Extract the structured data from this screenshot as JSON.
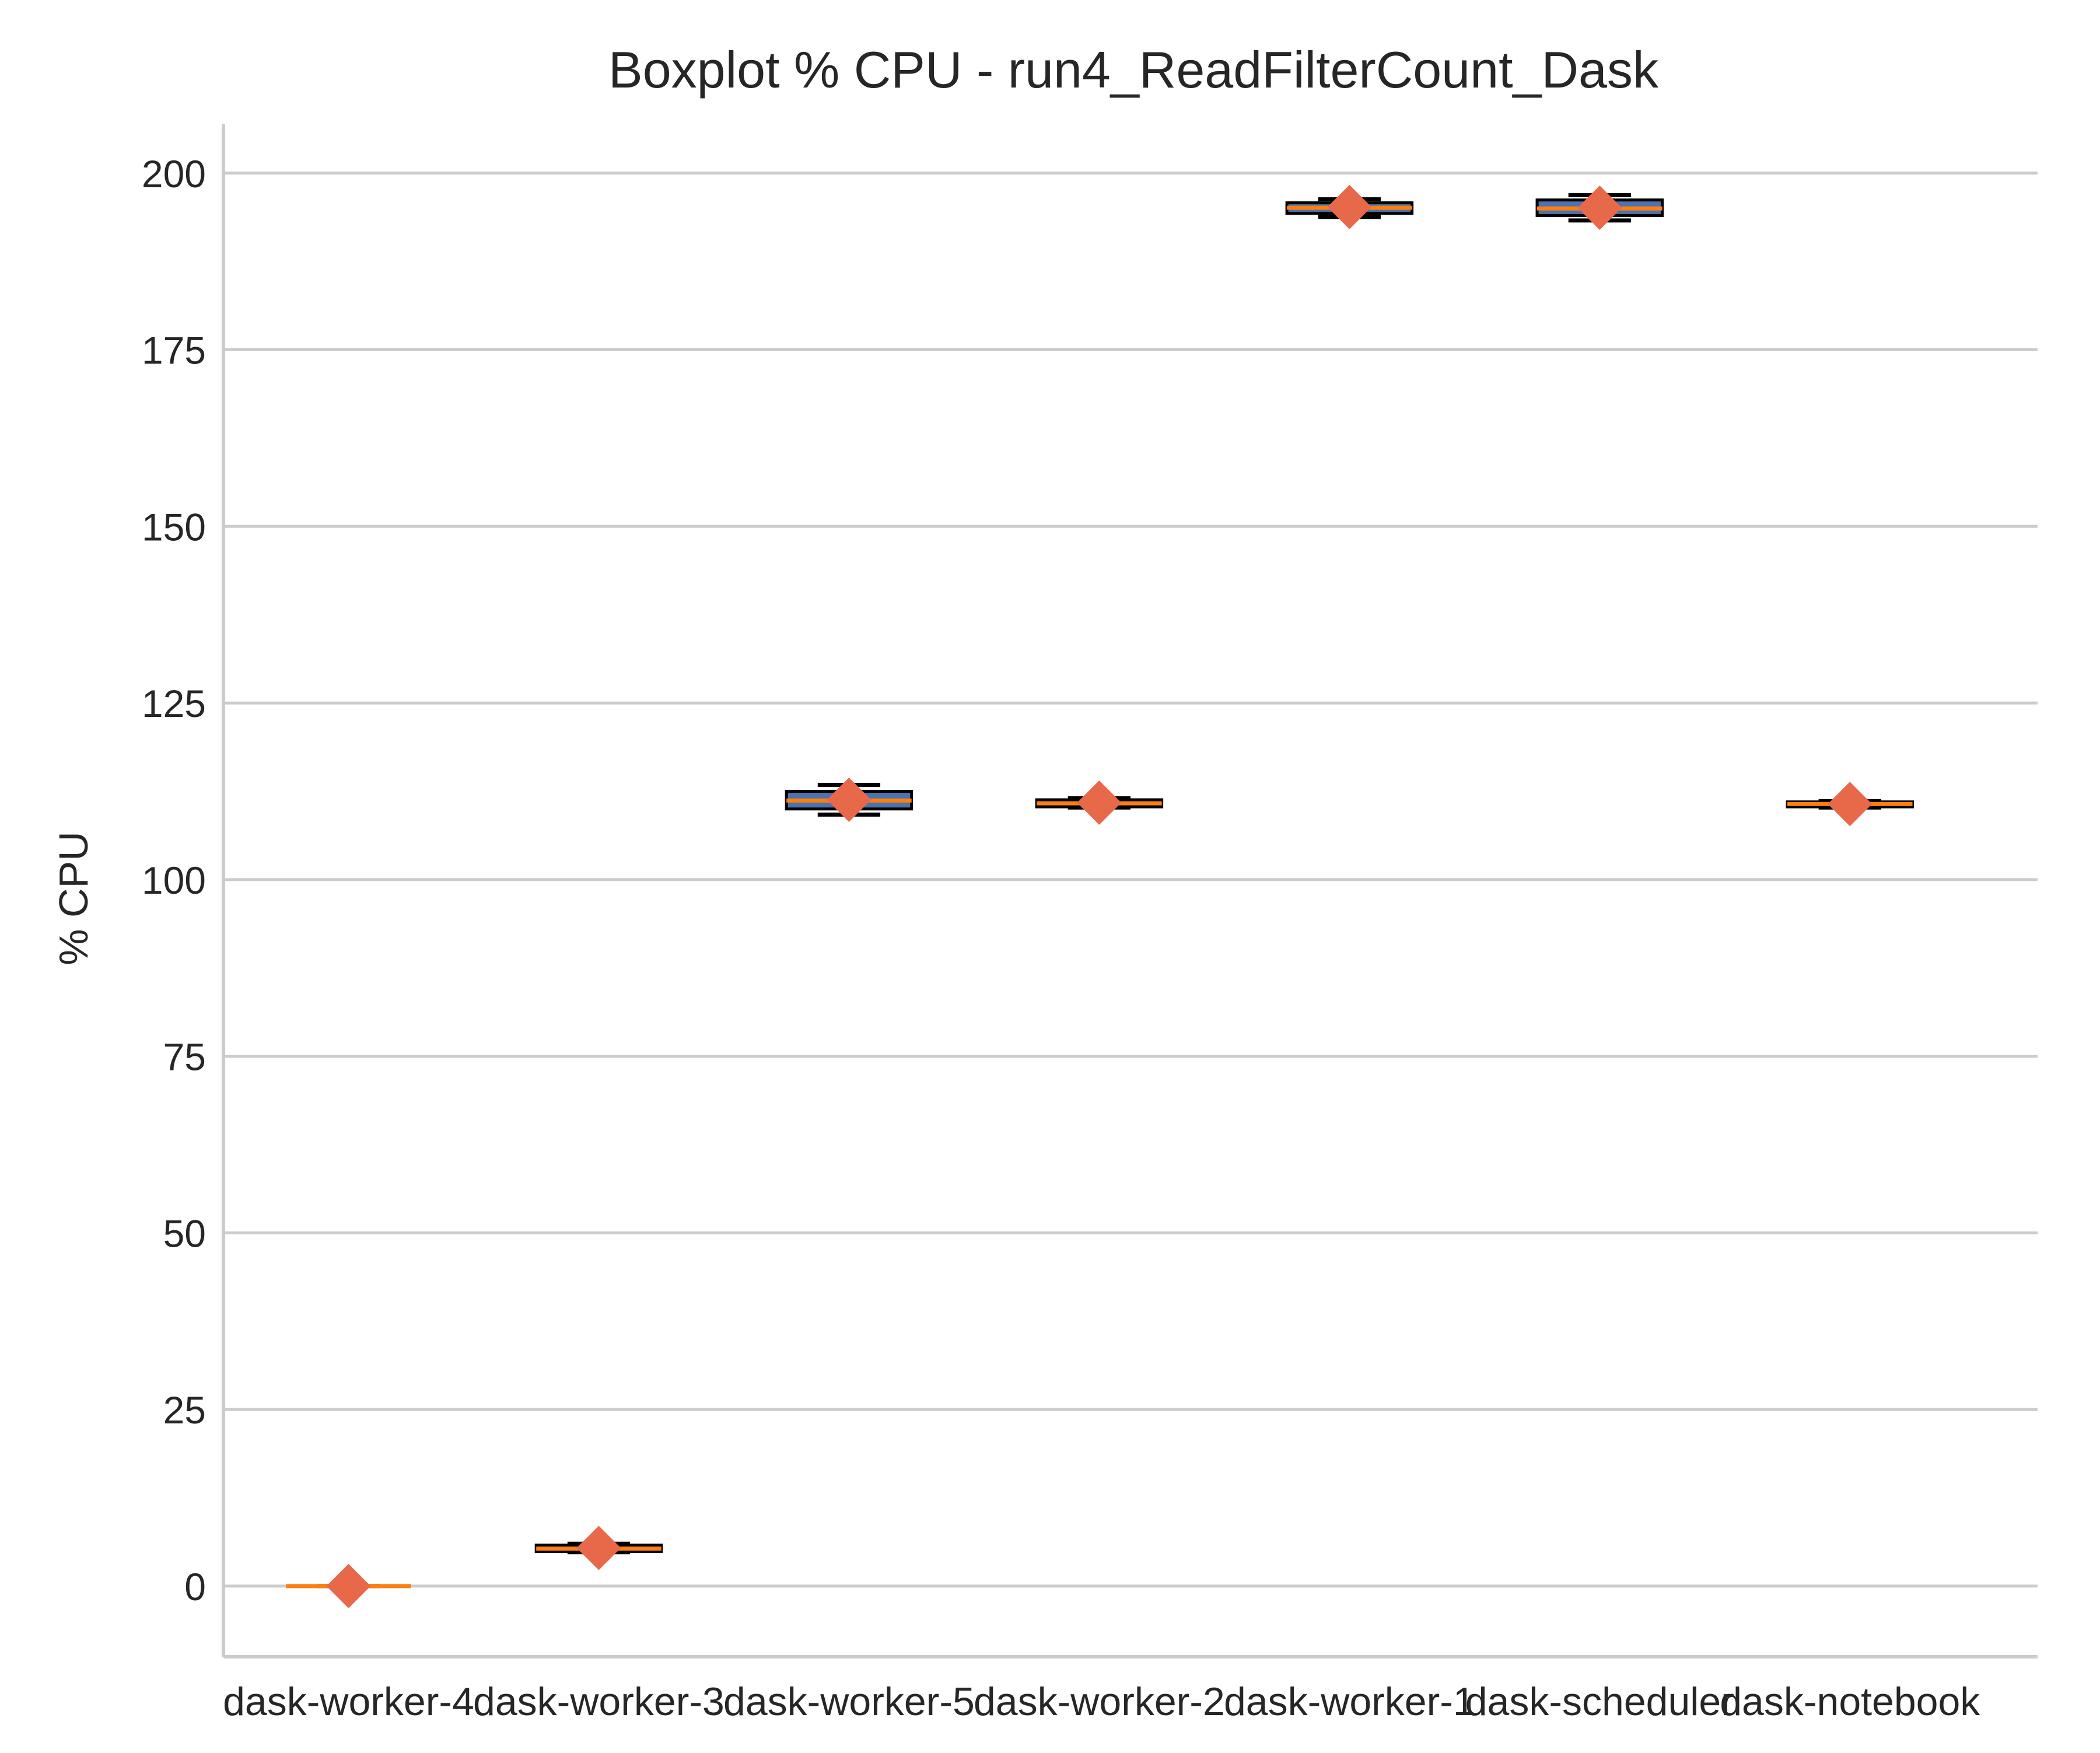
{
  "chart_data": {
    "type": "boxplot",
    "title": "Boxplot % CPU - run4_ReadFilterCount_Dask",
    "xlabel": "",
    "ylabel": "% CPU",
    "ylim": [
      -10,
      207
    ],
    "yticks": [
      0,
      25,
      50,
      75,
      100,
      125,
      150,
      175,
      200
    ],
    "grid": "horizontal",
    "categories": [
      "dask-worker-4",
      "dask-worker-3",
      "dask-worker-5",
      "dask-worker-2",
      "dask-worker-1",
      "dask-scheduler",
      "dask-notebook"
    ],
    "boxes": [
      {
        "whislo": 0.0,
        "q1": 0.0,
        "med": 0.0,
        "q3": 0.0,
        "whishi": 0.0,
        "mean": 0.0
      },
      {
        "whislo": 4.8,
        "q1": 4.9,
        "med": 5.3,
        "q3": 5.8,
        "whishi": 6.0,
        "mean": 5.4
      },
      {
        "whislo": 109.2,
        "q1": 110.0,
        "med": 111.2,
        "q3": 112.5,
        "whishi": 113.4,
        "mean": 111.3
      },
      {
        "whislo": 110.2,
        "q1": 110.3,
        "med": 110.8,
        "q3": 111.3,
        "whishi": 111.5,
        "mean": 110.9
      },
      {
        "whislo": 193.8,
        "q1": 194.3,
        "med": 195.1,
        "q3": 195.8,
        "whishi": 196.3,
        "mean": 195.2
      },
      {
        "whislo": 193.3,
        "q1": 194.0,
        "med": 195.0,
        "q3": 196.2,
        "whishi": 196.9,
        "mean": 195.1
      },
      {
        "whislo": 110.2,
        "q1": 110.3,
        "med": 110.7,
        "q3": 111.0,
        "whishi": 111.1,
        "mean": 110.7
      }
    ],
    "colors": {
      "box_fill": "#4c72b0",
      "median": "#ff7f0e",
      "mean_marker": "#e8694a",
      "grid": "#cccccc",
      "spine": "#cccccc",
      "text": "#262626"
    }
  }
}
